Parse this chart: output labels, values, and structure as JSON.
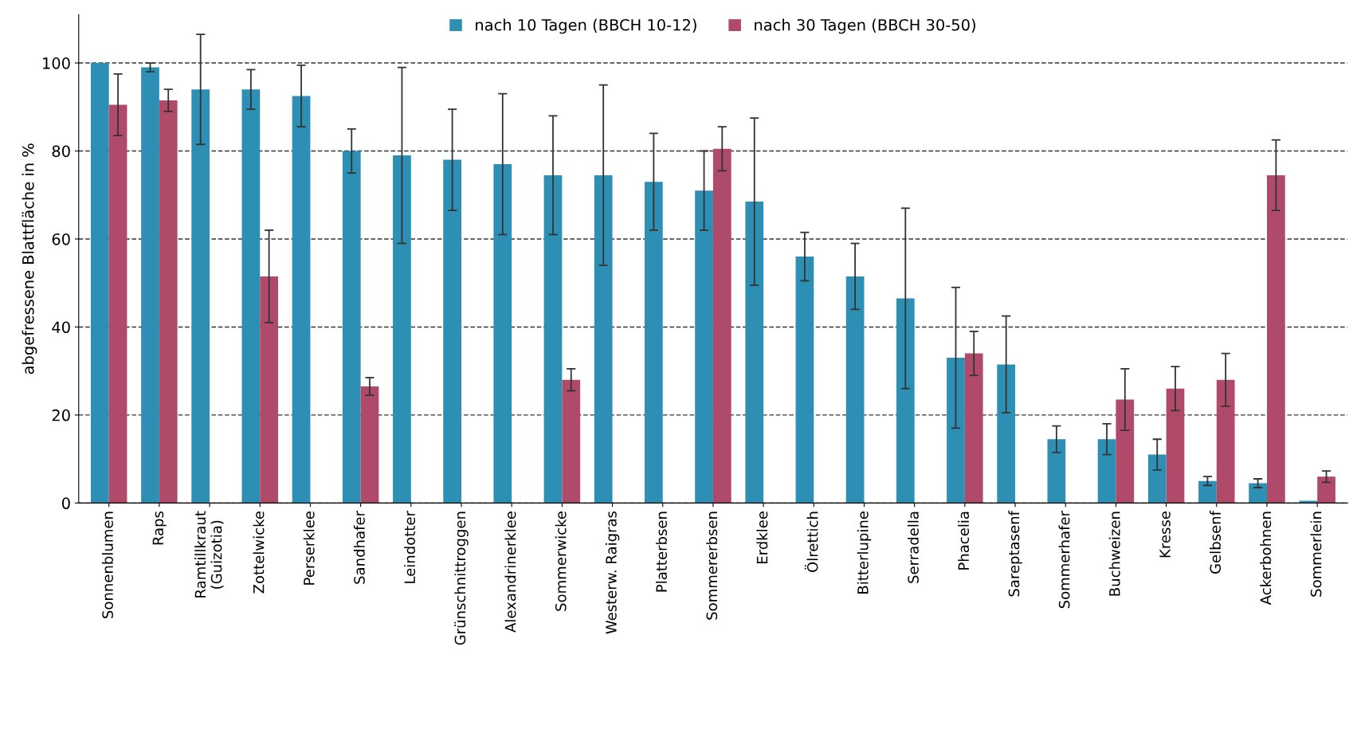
{
  "chart_data": {
    "type": "bar",
    "ylabel": "abgefressene Blattfläche in %",
    "categories": [
      "Sonnenblumen",
      "Raps",
      "Ramtillkraut\n(Guizotia)",
      "Zottelwicke",
      "Perserklee",
      "Sandhafer",
      "Leindotter",
      "Grünschnittroggen",
      "Alexandrinerklee",
      "Sommerwicke",
      "Westerw. Raigras",
      "Platterbsen",
      "Sommererbsen",
      "Erdklee",
      "Ölrettich",
      "Bitterlupine",
      "Serradella",
      "Phacelia",
      "Sareptasenf",
      "Sommerhafer",
      "Buchweizen",
      "Kresse",
      "Gelbsenf",
      "Ackerbohnen",
      "Sommerlein"
    ],
    "series": [
      {
        "name": "nach 10 Tagen (BBCH 10-12)",
        "color": "#2e8fb5",
        "values": [
          100,
          99,
          94,
          94,
          92.5,
          80,
          79,
          78,
          77,
          74.5,
          74.5,
          73,
          71,
          68.5,
          56,
          51.5,
          46.5,
          33,
          31.5,
          14.5,
          14.5,
          11,
          5,
          4.5,
          0.5
        ],
        "errors": [
          null,
          1,
          12.5,
          4.5,
          7,
          5,
          20,
          11.5,
          16,
          13.5,
          20.5,
          11,
          9,
          19,
          5.5,
          7.5,
          20.5,
          16,
          11,
          3,
          3.5,
          3.5,
          1,
          1,
          null
        ]
      },
      {
        "name": "nach 30 Tagen (BBCH 30-50)",
        "color": "#b04a6a",
        "values": [
          90.5,
          91.5,
          null,
          51.5,
          null,
          26.5,
          null,
          null,
          null,
          28,
          null,
          null,
          80.5,
          null,
          null,
          null,
          null,
          34,
          null,
          null,
          23.5,
          26,
          28,
          74.5,
          6
        ],
        "errors": [
          7,
          2.5,
          null,
          10.5,
          null,
          2,
          null,
          null,
          null,
          2.5,
          null,
          null,
          5,
          null,
          null,
          null,
          null,
          5,
          null,
          null,
          7,
          5,
          6,
          8,
          1.3
        ]
      }
    ],
    "ylim": [
      0,
      111
    ],
    "yticks": [
      0,
      20,
      40,
      60,
      80,
      100
    ],
    "grid": "y",
    "legend": "top"
  }
}
